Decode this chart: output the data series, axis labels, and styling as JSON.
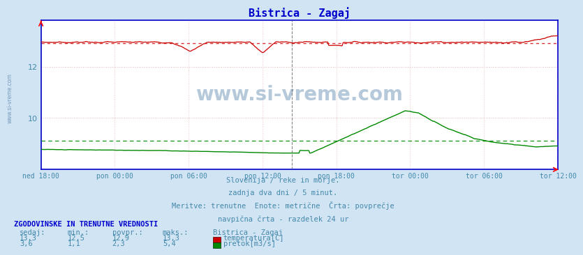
{
  "title": "Bistrica - Zagaj",
  "title_color": "#0000cc",
  "bg_color": "#d0e4f4",
  "plot_bg_color": "#ffffff",
  "grid_color_h": "#ddcccc",
  "grid_color_v": "#ffcccc",
  "border_color": "#0000cc",
  "tick_color": "#4488aa",
  "text_color": "#4488aa",
  "xlabels": [
    "ned 18:00",
    "pon 00:00",
    "pon 06:00",
    "pon 12:00",
    "pon 18:00",
    "tor 00:00",
    "tor 06:00",
    "tor 12:00"
  ],
  "ylim": [
    8.0,
    13.8
  ],
  "yticks": [
    10,
    12
  ],
  "temp_avg": 12.9,
  "temp_min": 12.5,
  "temp_max": 13.3,
  "flow_avg": 2.3,
  "flow_min": 1.1,
  "flow_max": 5.4,
  "flow_ylim": [
    -0.5,
    14.0
  ],
  "temp_color": "#cc0000",
  "flow_color": "#008800",
  "vline_center_color": "#555555",
  "vline_right_color": "#cc00cc",
  "watermark": "www.si-vreme.com",
  "watermark_color": "#8eadc8",
  "subtitle_lines": [
    "Slovenija / reke in morje.",
    "zadnja dva dni / 5 minut.",
    "Meritve: trenutne  Enote: metrične  Črta: povprečje",
    "navpična črta - razdelek 24 ur"
  ],
  "legend_title": "ZGODOVINSKE IN TRENUTNE VREDNOSTI",
  "legend_headers": [
    "sedaj:",
    "min.:",
    "povpr.:",
    "maks.:",
    "Bistrica - Zagaj"
  ],
  "legend_temp_vals": [
    "13,3",
    "12,5",
    "12,9",
    "13,3"
  ],
  "legend_flow_vals": [
    "3,6",
    "1,1",
    "2,3",
    "5,4"
  ],
  "temp_label": "temperatura[C]",
  "flow_label": "pretok[m3/s]",
  "n_points": 576
}
